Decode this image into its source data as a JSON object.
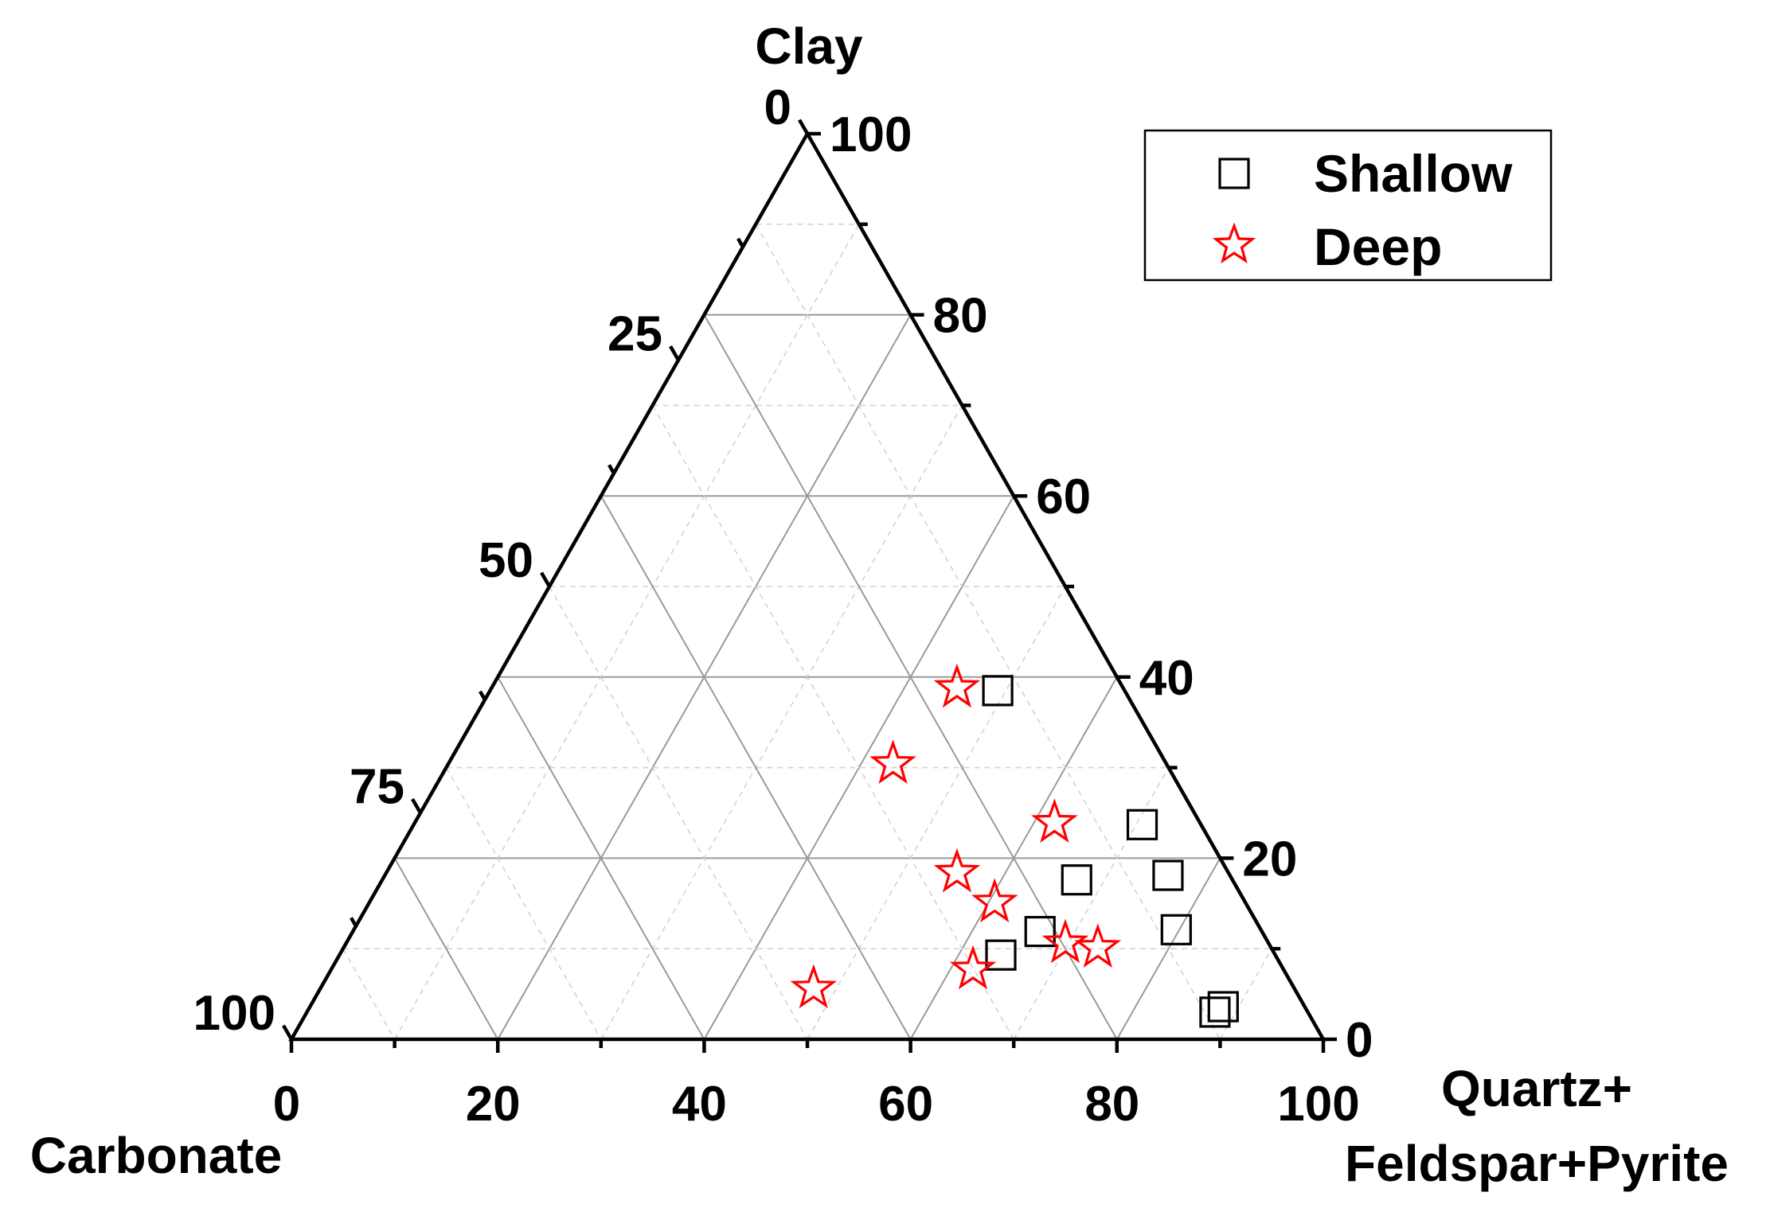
{
  "chart_data": {
    "type": "scatter",
    "subtype": "ternary",
    "axes": {
      "top": {
        "label": "Clay"
      },
      "left": {
        "label": "Carbonate"
      },
      "right": {
        "label_lines": [
          "Quartz+",
          "Feldspar+Pyrite"
        ]
      }
    },
    "ticks": {
      "bottom": [
        "0",
        "20",
        "40",
        "60",
        "80",
        "100"
      ],
      "right": [
        "0",
        "20",
        "40",
        "60",
        "80",
        "100"
      ],
      "left": [
        "0",
        "25",
        "50",
        "75",
        "100"
      ]
    },
    "grid": true,
    "legend": {
      "position": "top-right",
      "entries": [
        {
          "name": "Shallow",
          "marker": "square",
          "color": "#000000"
        },
        {
          "name": "Deep",
          "marker": "star",
          "color": "#ff0000"
        }
      ]
    },
    "series": [
      {
        "name": "Shallow",
        "points": [
          {
            "clay": 38.5,
            "quartz_feldspar_pyrite": 49.2
          },
          {
            "clay": 23.7,
            "quartz_feldspar_pyrite": 70.6
          },
          {
            "clay": 18.1,
            "quartz_feldspar_pyrite": 75.9
          },
          {
            "clay": 17.6,
            "quartz_feldspar_pyrite": 67.3
          },
          {
            "clay": 12.1,
            "quartz_feldspar_pyrite": 79.7
          },
          {
            "clay": 11.9,
            "quartz_feldspar_pyrite": 66.6
          },
          {
            "clay": 9.3,
            "quartz_feldspar_pyrite": 64.1
          },
          {
            "clay": 3.6,
            "quartz_feldspar_pyrite": 88.5
          },
          {
            "clay": 3.0,
            "quartz_feldspar_pyrite": 88.0
          }
        ]
      },
      {
        "name": "Deep",
        "points": [
          {
            "clay": 38.8,
            "quartz_feldspar_pyrite": 45.1
          },
          {
            "clay": 30.4,
            "quartz_feldspar_pyrite": 43.1
          },
          {
            "clay": 23.9,
            "quartz_feldspar_pyrite": 62.0
          },
          {
            "clay": 18.4,
            "quartz_feldspar_pyrite": 55.3
          },
          {
            "clay": 15.1,
            "quartz_feldspar_pyrite": 60.6
          },
          {
            "clay": 10.6,
            "quartz_feldspar_pyrite": 69.7
          },
          {
            "clay": 10.1,
            "quartz_feldspar_pyrite": 73.1
          },
          {
            "clay": 7.7,
            "quartz_feldspar_pyrite": 62.2
          },
          {
            "clay": 5.6,
            "quartz_feldspar_pyrite": 47.8
          }
        ]
      }
    ]
  }
}
